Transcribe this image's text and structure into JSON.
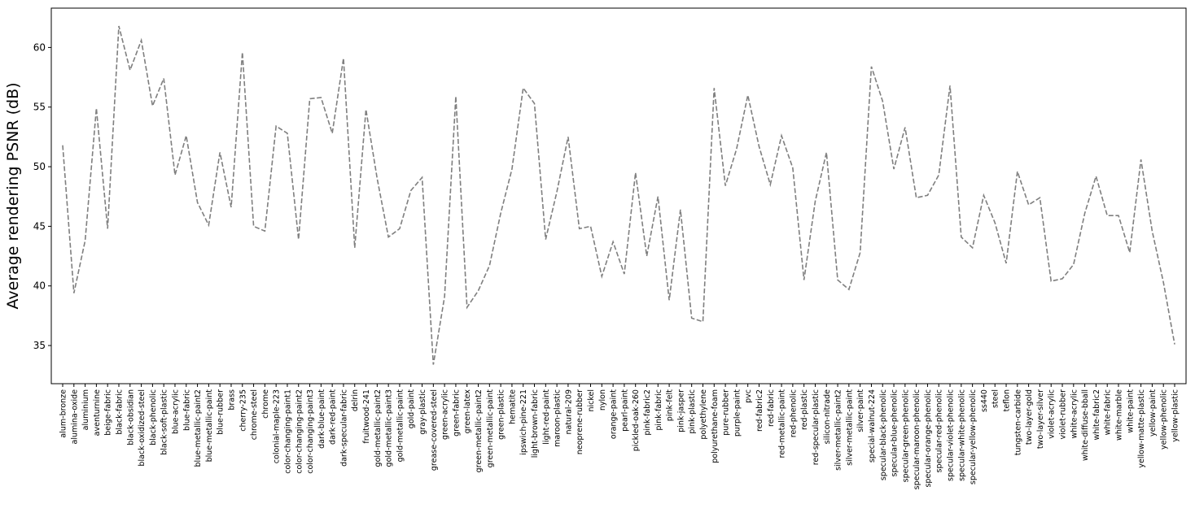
{
  "chart_data": {
    "type": "line",
    "title": "",
    "xlabel": "",
    "ylabel": "Average rendering PSNR (dB)",
    "ylim": [
      31.8,
      63.3
    ],
    "yticks": [
      35,
      40,
      45,
      50,
      55,
      60
    ],
    "grid": false,
    "line_style": "dashed",
    "line_color": "#7f7f7f",
    "categories": [
      "alum-bronze",
      "alumina-oxide",
      "aluminium",
      "aventurnine",
      "beige-fabric",
      "black-fabric",
      "black-obsidian",
      "black-oxidized-steel",
      "black-phenolic",
      "black-soft-plastic",
      "blue-acrylic",
      "blue-fabric",
      "blue-metallic-paint2",
      "blue-metallic-paint",
      "blue-rubber",
      "brass",
      "cherry-235",
      "chrome-steel",
      "chrome",
      "colonial-maple-223",
      "color-changing-paint1",
      "color-changing-paint2",
      "color-changing-paint3",
      "dark-blue-paint",
      "dark-red-paint",
      "dark-specular-fabric",
      "delrin",
      "fruitwood-241",
      "gold-metallic-paint2",
      "gold-metallic-paint3",
      "gold-metallic-paint",
      "gold-paint",
      "gray-plastic",
      "grease-covered-steel",
      "green-acrylic",
      "green-fabric",
      "green-latex",
      "green-metallic-paint2",
      "green-metallic-paint",
      "green-plastic",
      "hematite",
      "ipswich-pine-221",
      "light-brown-fabric",
      "light-red-paint",
      "maroon-plastic",
      "natural-209",
      "neoprene-rubber",
      "nickel",
      "nylon",
      "orange-paint",
      "pearl-paint",
      "pickled-oak-260",
      "pink-fabric2",
      "pink-fabric",
      "pink-felt",
      "pink-jasper",
      "pink-plastic",
      "polyethylene",
      "polyurethane-foam",
      "pure-rubber",
      "purple-paint",
      "pvc",
      "red-fabric2",
      "red-fabric",
      "red-metallic-paint",
      "red-phenolic",
      "red-plastic",
      "red-specular-plastic",
      "silicon-nitrade",
      "silver-metallic-paint2",
      "silver-metallic-paint",
      "silver-paint",
      "special-walnut-224",
      "specular-black-phenolic",
      "specular-blue-phenolic",
      "specular-green-phenolic",
      "specular-maroon-phenolic",
      "specular-orange-phenolic",
      "specular-red-phenolic",
      "specular-violet-phenolic",
      "specular-white-phenolic",
      "specular-yellow-phenolic",
      "ss440",
      "steel",
      "teflon",
      "tungsten-carbide",
      "two-layer-gold",
      "two-layer-silver",
      "violet-acrylic",
      "violet-rubber",
      "white-acrylic",
      "white-diffuse-bball",
      "white-fabric2",
      "white-fabric",
      "white-marble",
      "white-paint",
      "yellow-matte-plastic",
      "yellow-paint",
      "yellow-phenolic",
      "yellow-plastic"
    ],
    "values": [
      51.8,
      39.4,
      43.8,
      54.9,
      44.8,
      61.8,
      58.1,
      60.6,
      55.1,
      57.4,
      49.3,
      52.6,
      47.0,
      45.1,
      51.2,
      46.6,
      59.6,
      45.0,
      44.6,
      53.4,
      52.8,
      43.9,
      55.7,
      55.8,
      52.8,
      59.1,
      43.2,
      54.8,
      49.0,
      44.1,
      44.8,
      48.0,
      49.1,
      33.4,
      39.1,
      55.9,
      38.2,
      39.6,
      41.7,
      46.1,
      49.8,
      56.6,
      55.3,
      43.9,
      47.9,
      52.5,
      44.8,
      45.0,
      40.8,
      43.7,
      41.0,
      49.5,
      42.5,
      47.5,
      38.8,
      46.4,
      37.3,
      37.0,
      56.6,
      48.4,
      51.5,
      56.0,
      51.7,
      48.5,
      52.6,
      49.9,
      40.5,
      47.1,
      51.2,
      40.5,
      39.7,
      42.8,
      58.4,
      55.5,
      49.8,
      53.3,
      47.4,
      47.6,
      49.3,
      56.8,
      44.1,
      43.2,
      47.6,
      45.3,
      41.9,
      49.6,
      46.8,
      47.4,
      40.4,
      40.6,
      41.8,
      46.1,
      49.2,
      45.9,
      45.9,
      42.8,
      50.6,
      44.6,
      40.3,
      35.1
    ]
  }
}
